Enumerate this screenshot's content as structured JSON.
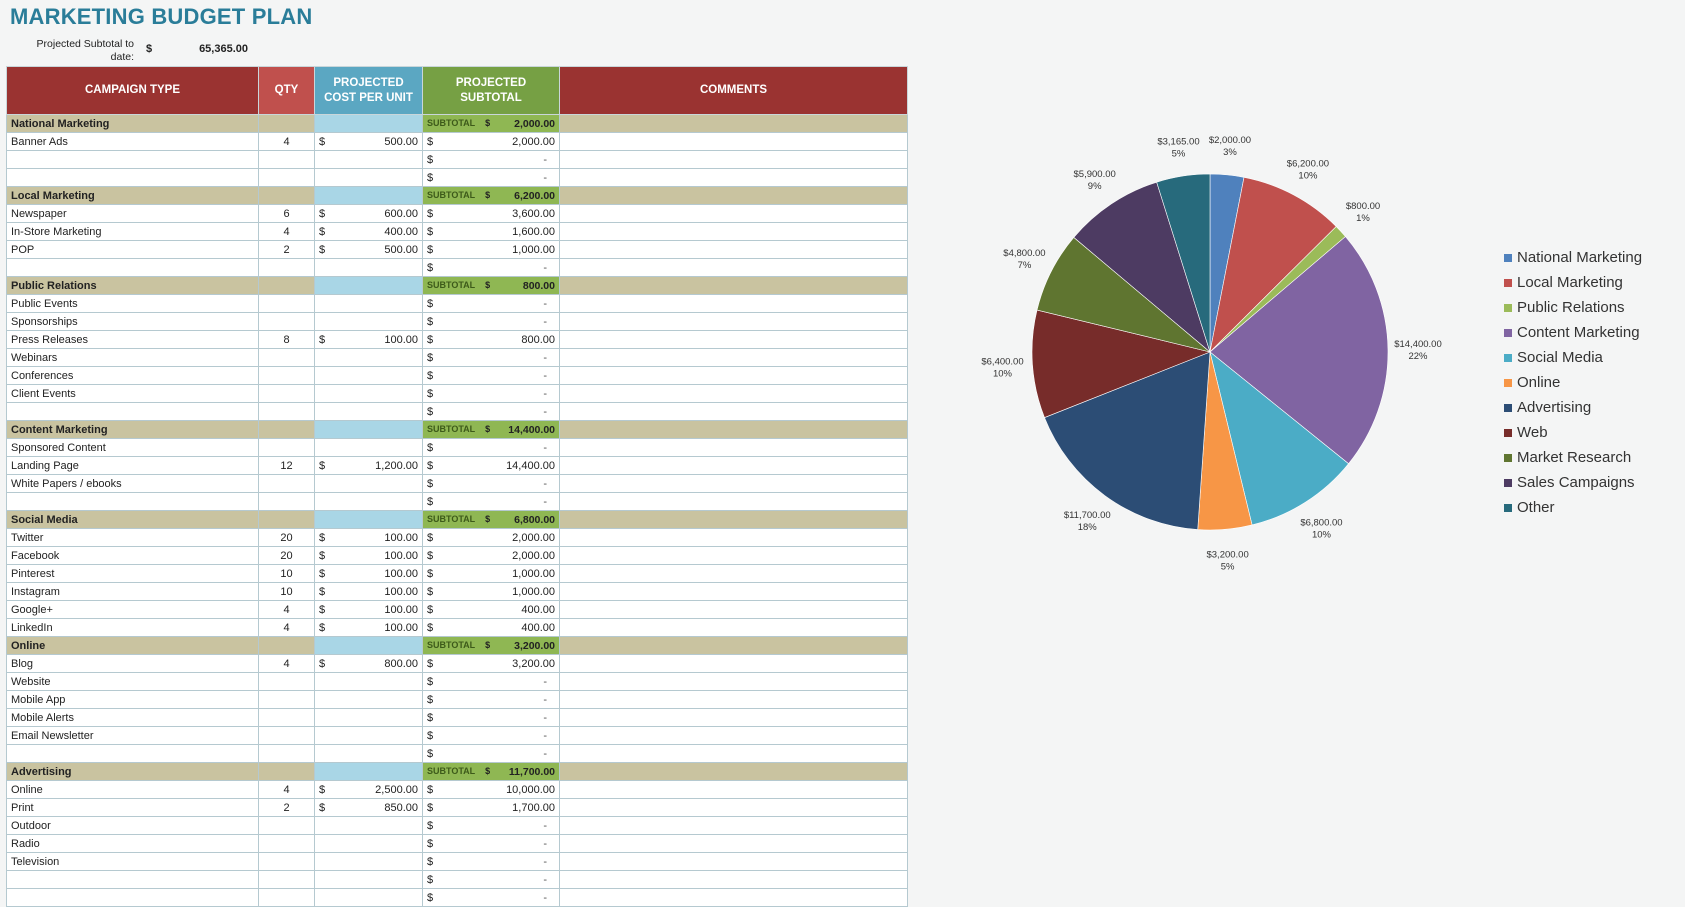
{
  "title": "MARKETING BUDGET PLAN",
  "projected": {
    "label": "Projected Subtotal to date:",
    "currency": "$",
    "value": "65,365.00"
  },
  "headers": {
    "type": "CAMPAIGN TYPE",
    "qty": "QTY",
    "cost": "PROJECTED COST PER UNIT",
    "subtotal": "PROJECTED SUBTOTAL",
    "comments": "COMMENTS"
  },
  "subtotal_label": "SUBTOTAL",
  "currency": "$",
  "dash": "-",
  "rows": [
    {
      "kind": "cat",
      "name": "National Marketing",
      "subtotal": "2,000.00"
    },
    {
      "kind": "item",
      "name": "Banner Ads",
      "qty": "4",
      "cost": "500.00",
      "subtotal": "2,000.00"
    },
    {
      "kind": "item",
      "name": "",
      "qty": "",
      "cost": "",
      "subtotal": ""
    },
    {
      "kind": "item",
      "name": "",
      "qty": "",
      "cost": "",
      "subtotal": ""
    },
    {
      "kind": "cat",
      "name": "Local Marketing",
      "subtotal": "6,200.00"
    },
    {
      "kind": "item",
      "name": "Newspaper",
      "qty": "6",
      "cost": "600.00",
      "subtotal": "3,600.00"
    },
    {
      "kind": "item",
      "name": "In-Store Marketing",
      "qty": "4",
      "cost": "400.00",
      "subtotal": "1,600.00"
    },
    {
      "kind": "item",
      "name": "POP",
      "qty": "2",
      "cost": "500.00",
      "subtotal": "1,000.00"
    },
    {
      "kind": "item",
      "name": "",
      "qty": "",
      "cost": "",
      "subtotal": ""
    },
    {
      "kind": "cat",
      "name": "Public Relations",
      "subtotal": "800.00"
    },
    {
      "kind": "item",
      "name": "Public Events",
      "qty": "",
      "cost": "",
      "subtotal": ""
    },
    {
      "kind": "item",
      "name": "Sponsorships",
      "qty": "",
      "cost": "",
      "subtotal": ""
    },
    {
      "kind": "item",
      "name": "Press Releases",
      "qty": "8",
      "cost": "100.00",
      "subtotal": "800.00"
    },
    {
      "kind": "item",
      "name": "Webinars",
      "qty": "",
      "cost": "",
      "subtotal": ""
    },
    {
      "kind": "item",
      "name": "Conferences",
      "qty": "",
      "cost": "",
      "subtotal": ""
    },
    {
      "kind": "item",
      "name": "Client Events",
      "qty": "",
      "cost": "",
      "subtotal": ""
    },
    {
      "kind": "item",
      "name": "",
      "qty": "",
      "cost": "",
      "subtotal": ""
    },
    {
      "kind": "cat",
      "name": "Content Marketing",
      "subtotal": "14,400.00"
    },
    {
      "kind": "item",
      "name": "Sponsored Content",
      "qty": "",
      "cost": "",
      "subtotal": ""
    },
    {
      "kind": "item",
      "name": "Landing Page",
      "qty": "12",
      "cost": "1,200.00",
      "subtotal": "14,400.00"
    },
    {
      "kind": "item",
      "name": "White Papers / ebooks",
      "qty": "",
      "cost": "",
      "subtotal": ""
    },
    {
      "kind": "item",
      "name": "",
      "qty": "",
      "cost": "",
      "subtotal": ""
    },
    {
      "kind": "cat",
      "name": "Social Media",
      "subtotal": "6,800.00"
    },
    {
      "kind": "item",
      "name": "Twitter",
      "qty": "20",
      "cost": "100.00",
      "subtotal": "2,000.00"
    },
    {
      "kind": "item",
      "name": "Facebook",
      "qty": "20",
      "cost": "100.00",
      "subtotal": "2,000.00"
    },
    {
      "kind": "item",
      "name": "Pinterest",
      "qty": "10",
      "cost": "100.00",
      "subtotal": "1,000.00"
    },
    {
      "kind": "item",
      "name": "Instagram",
      "qty": "10",
      "cost": "100.00",
      "subtotal": "1,000.00"
    },
    {
      "kind": "item",
      "name": "Google+",
      "qty": "4",
      "cost": "100.00",
      "subtotal": "400.00"
    },
    {
      "kind": "item",
      "name": "LinkedIn",
      "qty": "4",
      "cost": "100.00",
      "subtotal": "400.00"
    },
    {
      "kind": "cat",
      "name": "Online",
      "subtotal": "3,200.00"
    },
    {
      "kind": "item",
      "name": "Blog",
      "qty": "4",
      "cost": "800.00",
      "subtotal": "3,200.00"
    },
    {
      "kind": "item",
      "name": "Website",
      "qty": "",
      "cost": "",
      "subtotal": ""
    },
    {
      "kind": "item",
      "name": "Mobile App",
      "qty": "",
      "cost": "",
      "subtotal": ""
    },
    {
      "kind": "item",
      "name": "Mobile Alerts",
      "qty": "",
      "cost": "",
      "subtotal": ""
    },
    {
      "kind": "item",
      "name": "Email Newsletter",
      "qty": "",
      "cost": "",
      "subtotal": ""
    },
    {
      "kind": "item",
      "name": "",
      "qty": "",
      "cost": "",
      "subtotal": ""
    },
    {
      "kind": "cat",
      "name": "Advertising",
      "subtotal": "11,700.00"
    },
    {
      "kind": "item",
      "name": "Online",
      "qty": "4",
      "cost": "2,500.00",
      "subtotal": "10,000.00"
    },
    {
      "kind": "item",
      "name": "Print",
      "qty": "2",
      "cost": "850.00",
      "subtotal": "1,700.00"
    },
    {
      "kind": "item",
      "name": "Outdoor",
      "qty": "",
      "cost": "",
      "subtotal": ""
    },
    {
      "kind": "item",
      "name": "Radio",
      "qty": "",
      "cost": "",
      "subtotal": ""
    },
    {
      "kind": "item",
      "name": "Television",
      "qty": "",
      "cost": "",
      "subtotal": ""
    },
    {
      "kind": "item",
      "name": "",
      "qty": "",
      "cost": "",
      "subtotal": ""
    },
    {
      "kind": "item",
      "name": "",
      "qty": "",
      "cost": "",
      "subtotal": ""
    }
  ],
  "chart_data": {
    "type": "pie",
    "title": "",
    "legend_position": "right",
    "slices": [
      {
        "name": "National Marketing",
        "value": 2000,
        "label": "$2,000.00",
        "pct": "3%",
        "color": "#4f81bd"
      },
      {
        "name": "Local Marketing",
        "value": 6200,
        "label": "$6,200.00",
        "pct": "10%",
        "color": "#c0504d"
      },
      {
        "name": "Public Relations",
        "value": 800,
        "label": "$800.00",
        "pct": "1%",
        "color": "#9bbb59"
      },
      {
        "name": "Content Marketing",
        "value": 14400,
        "label": "$14,400.00",
        "pct": "22%",
        "color": "#8064a2"
      },
      {
        "name": "Social Media",
        "value": 6800,
        "label": "$6,800.00",
        "pct": "10%",
        "color": "#4bacc6"
      },
      {
        "name": "Online",
        "value": 3200,
        "label": "$3,200.00",
        "pct": "5%",
        "color": "#f79646"
      },
      {
        "name": "Advertising",
        "value": 11700,
        "label": "$11,700.00",
        "pct": "18%",
        "color": "#2c4d75"
      },
      {
        "name": "Web",
        "value": 6400,
        "label": "$6,400.00",
        "pct": "10%",
        "color": "#772c2a"
      },
      {
        "name": "Market Research",
        "value": 4800,
        "label": "$4,800.00",
        "pct": "7%",
        "color": "#5f7530"
      },
      {
        "name": "Sales Campaigns",
        "value": 5900,
        "label": "$5,900.00",
        "pct": "9%",
        "color": "#4d3b62"
      },
      {
        "name": "Other",
        "value": 3165,
        "label": "$3,165.00",
        "pct": "5%",
        "color": "#276a7c"
      }
    ]
  }
}
